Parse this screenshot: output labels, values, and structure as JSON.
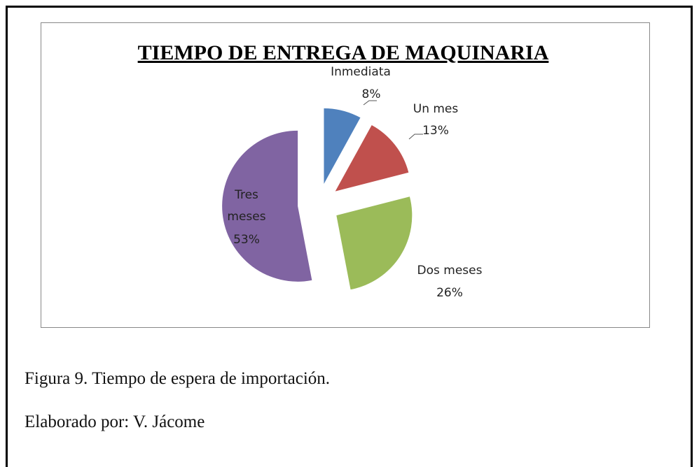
{
  "chart_data": {
    "type": "pie",
    "title": "TIEMPO DE ENTREGA DE MAQUINARIA",
    "categories": [
      "Inmediata",
      "Un mes",
      "Dos meses",
      "Tres meses"
    ],
    "values": [
      8,
      13,
      26,
      53
    ],
    "value_labels": [
      "8%",
      "13%",
      "26%",
      "53%"
    ],
    "colors": [
      "#4f81bd",
      "#c0504d",
      "#9bbb59",
      "#8064a2"
    ]
  },
  "caption": "Figura 9. Tiempo de espera de importación.",
  "credit": "Elaborado por: V. Jácome"
}
